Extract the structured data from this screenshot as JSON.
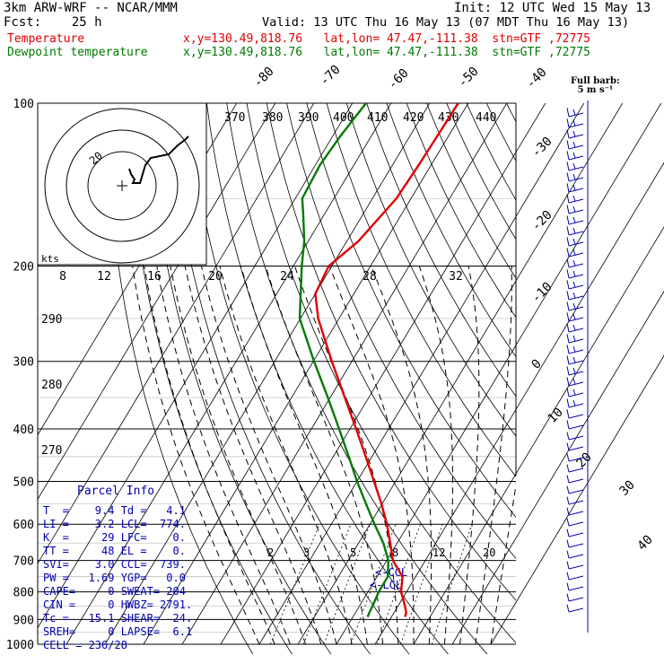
{
  "header": {
    "line1_left": "3km ARW-WRF -- NCAR/MMM",
    "line1_right": "Init: 12 UTC Wed 15 May 13",
    "line2_left": "Fcst:    25 h",
    "line2_right": "Valid: 13 UTC Thu 16 May 13 (07 MDT Thu 16 May 13)",
    "temp_label": "Temperature",
    "temp_info": "x,y=130.49,818.76   lat,lon= 47.47,-111.38  stn=GTF ,72775",
    "dew_label": "Dewpoint temperature",
    "dew_info": "x,y=130.49,818.76   lat,lon= 47.47,-111.38  stn=GTF ,72775"
  },
  "colors": {
    "temperature": "#e00000",
    "dewpoint": "#007a00",
    "isobar": "#000000",
    "isotherm": "#000000",
    "dry_adiabat": "#000000",
    "moist_adiabat": "#000000",
    "barb": "#0000b4",
    "parcel_text": "#0000b4"
  },
  "barb_note": {
    "line1": "Full barb:",
    "line2": "5 m s⁻¹"
  },
  "parcel": {
    "title": "Parcel Info",
    "rows": [
      "T  =    9.4 Td =   4.1",
      "LI =    3.2 LCL=  774.",
      "K  =     29 LFC=    0.",
      "TT =     48 EL =    0.",
      "SVI=    3.0 CCL=  739.",
      "PW =   1.69 YGP=   0.0",
      "CAPE=     0 SWEAT= 204",
      "CIN =     0 HWBZ= 2791.",
      "Tc =   15.1 SHEAR=  24.",
      "SREH=     0 LAPSE=  6.1",
      "CELL = 236/28"
    ]
  },
  "chart_data": {
    "type": "line",
    "subtype": "skew-T log-P sounding",
    "pressure_levels": [
      1000,
      900,
      800,
      700,
      600,
      500,
      400,
      300,
      200,
      100
    ],
    "isotherm_labels": [
      "-80",
      "-70",
      "-60",
      "-50",
      "-40",
      "-30",
      "-20",
      "-10",
      "0",
      "10",
      "20",
      "30",
      "40"
    ],
    "theta_labels": [
      "370",
      "380",
      "390",
      "400",
      "410",
      "420",
      "430",
      "440",
      "290",
      "280",
      "270"
    ],
    "mixing_ratio_labels": [
      "2",
      "3",
      "5",
      "8",
      "12",
      "20"
    ],
    "annotations": {
      "ccl": "<-CCL",
      "lcl": "<-LCL"
    },
    "series": [
      {
        "name": "Temperature",
        "pressure": [
          890,
          875,
          850,
          800,
          750,
          700,
          650,
          600,
          550,
          500,
          450,
          400,
          350,
          300,
          250,
          225,
          200,
          180,
          150,
          130,
          110,
          100
        ],
        "temperature": [
          13.5,
          13.2,
          11.8,
          8.6,
          6.6,
          1.6,
          -1.8,
          -5.6,
          -10.2,
          -15.6,
          -21.6,
          -28.4,
          -36.2,
          -45.2,
          -55.4,
          -60.0,
          -60.8,
          -57.0,
          -53.8,
          -53.2,
          -52.8,
          -52.6
        ]
      },
      {
        "name": "Dewpoint temperature",
        "pressure": [
          890,
          875,
          850,
          800,
          750,
          700,
          650,
          600,
          550,
          500,
          450,
          400,
          350,
          300,
          250,
          200,
          180,
          160,
          150,
          130,
          115,
          100
        ],
        "temperature": [
          3.8,
          3.6,
          3.4,
          2.8,
          2.8,
          0.4,
          -3.6,
          -8.8,
          -14.2,
          -20.0,
          -26.0,
          -32.8,
          -40.6,
          -49.8,
          -60.2,
          -67.8,
          -71.0,
          -75.6,
          -78.2,
          -78.8,
          -78.0,
          -76.5
        ]
      }
    ],
    "hodograph": {
      "ring_labels": [
        "20",
        "kts"
      ],
      "speed_ticks": [
        "8",
        "12",
        "16",
        "20",
        "24",
        "28",
        "32"
      ]
    },
    "wind_profile": "full barb = 5 m/s, barbs along right side"
  }
}
